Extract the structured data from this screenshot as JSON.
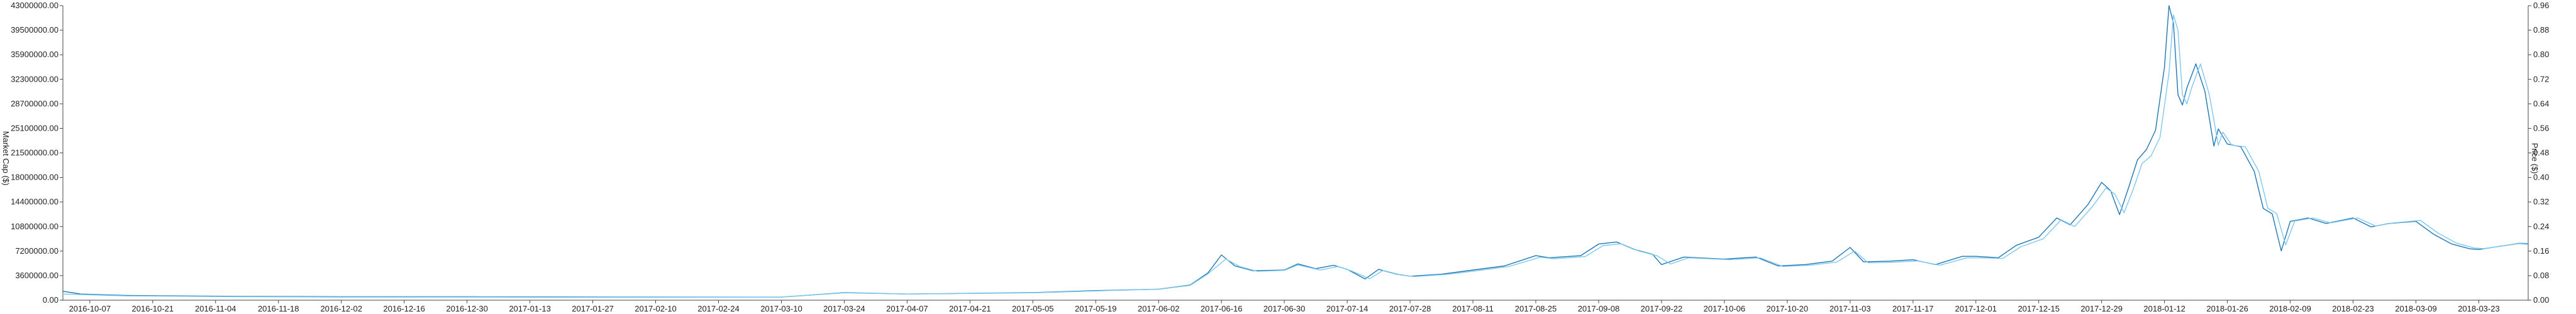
{
  "chart_data": {
    "type": "line",
    "grid": false,
    "legend": "none",
    "x_axis": {
      "type": "date",
      "range": [
        "2016-10-01",
        "2018-04-03"
      ],
      "tick_labels": [
        "2016-10-07",
        "2016-10-21",
        "2016-11-04",
        "2016-11-18",
        "2016-12-02",
        "2016-12-16",
        "2016-12-30",
        "2017-01-13",
        "2017-01-27",
        "2017-02-10",
        "2017-02-24",
        "2017-03-10",
        "2017-03-24",
        "2017-04-07",
        "2017-04-21",
        "2017-05-05",
        "2017-05-19",
        "2017-06-02",
        "2017-06-16",
        "2017-06-30",
        "2017-07-14",
        "2017-07-28",
        "2017-08-11",
        "2017-08-25",
        "2017-09-08",
        "2017-09-22",
        "2017-10-06",
        "2017-10-20",
        "2017-11-03",
        "2017-11-17",
        "2017-12-01",
        "2017-12-15",
        "2017-12-29",
        "2018-01-12",
        "2018-01-26",
        "2018-02-09",
        "2018-02-23",
        "2018-03-09",
        "2018-03-23"
      ]
    },
    "y_axis_left": {
      "label": "Market Cap ($)",
      "range": [
        0,
        43000000
      ],
      "tick_labels": [
        "0.00",
        "3600000.00",
        "7200000.00",
        "10800000.00",
        "14400000.00",
        "18000000.00",
        "21500000.00",
        "25100000.00",
        "28700000.00",
        "32300000.00",
        "35900000.00",
        "39500000.00",
        "43000000.00"
      ]
    },
    "y_axis_right": {
      "label": "Price ($)",
      "range": [
        0,
        0.96
      ],
      "tick_labels": [
        "0.00",
        "0.08",
        "0.16",
        "0.24",
        "0.32",
        "0.40",
        "0.48",
        "0.56",
        "0.64",
        "0.72",
        "0.80",
        "0.88",
        "0.96"
      ]
    },
    "series": [
      {
        "axis": "left",
        "color": "#1f77b4",
        "points": [
          [
            "2016-10-01",
            1300000
          ],
          [
            "2016-10-05",
            900000
          ],
          [
            "2016-10-15",
            700000
          ],
          [
            "2016-11-01",
            600000
          ],
          [
            "2016-12-01",
            500000
          ],
          [
            "2017-01-01",
            500000
          ],
          [
            "2017-02-01",
            450000
          ],
          [
            "2017-03-10",
            450000
          ],
          [
            "2017-03-24",
            1100000
          ],
          [
            "2017-04-07",
            900000
          ],
          [
            "2017-04-21",
            1000000
          ],
          [
            "2017-05-05",
            1100000
          ],
          [
            "2017-05-19",
            1400000
          ],
          [
            "2017-06-02",
            1600000
          ],
          [
            "2017-06-09",
            2200000
          ],
          [
            "2017-06-13",
            4000000
          ],
          [
            "2017-06-16",
            6600000
          ],
          [
            "2017-06-19",
            5000000
          ],
          [
            "2017-06-23",
            4300000
          ],
          [
            "2017-06-30",
            4400000
          ],
          [
            "2017-07-03",
            5300000
          ],
          [
            "2017-07-07",
            4600000
          ],
          [
            "2017-07-11",
            5100000
          ],
          [
            "2017-07-14",
            4500000
          ],
          [
            "2017-07-18",
            3100000
          ],
          [
            "2017-07-21",
            4500000
          ],
          [
            "2017-07-25",
            3800000
          ],
          [
            "2017-07-28",
            3500000
          ],
          [
            "2017-08-04",
            3800000
          ],
          [
            "2017-08-11",
            4400000
          ],
          [
            "2017-08-18",
            5000000
          ],
          [
            "2017-08-25",
            6500000
          ],
          [
            "2017-08-28",
            6200000
          ],
          [
            "2017-09-04",
            6500000
          ],
          [
            "2017-09-08",
            8200000
          ],
          [
            "2017-09-12",
            8500000
          ],
          [
            "2017-09-16",
            7400000
          ],
          [
            "2017-09-20",
            6700000
          ],
          [
            "2017-09-22",
            5200000
          ],
          [
            "2017-09-27",
            6300000
          ],
          [
            "2017-10-06",
            6000000
          ],
          [
            "2017-10-13",
            6300000
          ],
          [
            "2017-10-18",
            5000000
          ],
          [
            "2017-10-24",
            5200000
          ],
          [
            "2017-10-30",
            5700000
          ],
          [
            "2017-11-03",
            7700000
          ],
          [
            "2017-11-06",
            5600000
          ],
          [
            "2017-11-12",
            5700000
          ],
          [
            "2017-11-17",
            5900000
          ],
          [
            "2017-11-22",
            5200000
          ],
          [
            "2017-11-28",
            6400000
          ],
          [
            "2017-12-01",
            6400000
          ],
          [
            "2017-12-06",
            6200000
          ],
          [
            "2017-12-10",
            8000000
          ],
          [
            "2017-12-15",
            9200000
          ],
          [
            "2017-12-19",
            12000000
          ],
          [
            "2017-12-22",
            11000000
          ],
          [
            "2017-12-26",
            14000000
          ],
          [
            "2017-12-29",
            17200000
          ],
          [
            "2017-12-31",
            16000000
          ],
          [
            "2018-01-02",
            12500000
          ],
          [
            "2018-01-04",
            16400000
          ],
          [
            "2018-01-06",
            20500000
          ],
          [
            "2018-01-08",
            22000000
          ],
          [
            "2018-01-10",
            24800000
          ],
          [
            "2018-01-12",
            34000000
          ],
          [
            "2018-01-13",
            43000000
          ],
          [
            "2018-01-14",
            40500000
          ],
          [
            "2018-01-15",
            30000000
          ],
          [
            "2018-01-16",
            28500000
          ],
          [
            "2018-01-17",
            31000000
          ],
          [
            "2018-01-19",
            34500000
          ],
          [
            "2018-01-21",
            30500000
          ],
          [
            "2018-01-23",
            22500000
          ],
          [
            "2018-01-24",
            25000000
          ],
          [
            "2018-01-26",
            22800000
          ],
          [
            "2018-01-29",
            22400000
          ],
          [
            "2018-02-01",
            18800000
          ],
          [
            "2018-02-03",
            13400000
          ],
          [
            "2018-02-05",
            12600000
          ],
          [
            "2018-02-07",
            7200000
          ],
          [
            "2018-02-09",
            11500000
          ],
          [
            "2018-02-13",
            12000000
          ],
          [
            "2018-02-17",
            11200000
          ],
          [
            "2018-02-23",
            12000000
          ],
          [
            "2018-02-27",
            10700000
          ],
          [
            "2018-03-03",
            11200000
          ],
          [
            "2018-03-09",
            11500000
          ],
          [
            "2018-03-13",
            9600000
          ],
          [
            "2018-03-17",
            8200000
          ],
          [
            "2018-03-21",
            7500000
          ],
          [
            "2018-03-23",
            7400000
          ],
          [
            "2018-03-27",
            7800000
          ],
          [
            "2018-04-01",
            8300000
          ],
          [
            "2018-04-03",
            8200000
          ]
        ]
      },
      {
        "axis": "right",
        "color": "#7ec8f0",
        "points": [
          [
            "2016-10-01",
            0.02
          ],
          [
            "2016-10-15",
            0.014
          ],
          [
            "2016-11-01",
            0.012
          ],
          [
            "2016-12-01",
            0.01
          ],
          [
            "2017-01-01",
            0.01
          ],
          [
            "2017-02-01",
            0.009
          ],
          [
            "2017-03-10",
            0.01
          ],
          [
            "2017-03-24",
            0.024
          ],
          [
            "2017-04-07",
            0.02
          ],
          [
            "2017-04-21",
            0.022
          ],
          [
            "2017-05-05",
            0.024
          ],
          [
            "2017-05-19",
            0.03
          ],
          [
            "2017-06-02",
            0.036
          ],
          [
            "2017-06-09",
            0.048
          ],
          [
            "2017-06-13",
            0.086
          ],
          [
            "2017-06-17",
            0.134
          ],
          [
            "2017-06-20",
            0.11
          ],
          [
            "2017-06-24",
            0.094
          ],
          [
            "2017-06-30",
            0.097
          ],
          [
            "2017-07-03",
            0.115
          ],
          [
            "2017-07-08",
            0.098
          ],
          [
            "2017-07-12",
            0.11
          ],
          [
            "2017-07-15",
            0.095
          ],
          [
            "2017-07-19",
            0.07
          ],
          [
            "2017-07-22",
            0.097
          ],
          [
            "2017-07-26",
            0.082
          ],
          [
            "2017-07-29",
            0.077
          ],
          [
            "2017-08-05",
            0.084
          ],
          [
            "2017-08-12",
            0.096
          ],
          [
            "2017-08-19",
            0.11
          ],
          [
            "2017-08-26",
            0.14
          ],
          [
            "2017-08-29",
            0.135
          ],
          [
            "2017-09-05",
            0.142
          ],
          [
            "2017-09-09",
            0.178
          ],
          [
            "2017-09-13",
            0.184
          ],
          [
            "2017-09-17",
            0.16
          ],
          [
            "2017-09-21",
            0.145
          ],
          [
            "2017-09-24",
            0.118
          ],
          [
            "2017-09-28",
            0.138
          ],
          [
            "2017-10-07",
            0.132
          ],
          [
            "2017-10-14",
            0.138
          ],
          [
            "2017-10-19",
            0.11
          ],
          [
            "2017-10-25",
            0.114
          ],
          [
            "2017-10-31",
            0.124
          ],
          [
            "2017-11-04",
            0.16
          ],
          [
            "2017-11-07",
            0.122
          ],
          [
            "2017-11-13",
            0.124
          ],
          [
            "2017-11-18",
            0.128
          ],
          [
            "2017-11-23",
            0.114
          ],
          [
            "2017-11-29",
            0.138
          ],
          [
            "2017-12-02",
            0.138
          ],
          [
            "2017-12-07",
            0.136
          ],
          [
            "2017-12-11",
            0.174
          ],
          [
            "2017-12-16",
            0.2
          ],
          [
            "2017-12-20",
            0.262
          ],
          [
            "2017-12-23",
            0.24
          ],
          [
            "2017-12-27",
            0.306
          ],
          [
            "2017-12-30",
            0.366
          ],
          [
            "2018-01-01",
            0.345
          ],
          [
            "2018-01-03",
            0.285
          ],
          [
            "2018-01-05",
            0.36
          ],
          [
            "2018-01-07",
            0.445
          ],
          [
            "2018-01-09",
            0.47
          ],
          [
            "2018-01-11",
            0.53
          ],
          [
            "2018-01-13",
            0.74
          ],
          [
            "2018-01-14",
            0.93
          ],
          [
            "2018-01-15",
            0.88
          ],
          [
            "2018-01-16",
            0.67
          ],
          [
            "2018-01-17",
            0.64
          ],
          [
            "2018-01-18",
            0.69
          ],
          [
            "2018-01-20",
            0.77
          ],
          [
            "2018-01-22",
            0.67
          ],
          [
            "2018-01-24",
            0.505
          ],
          [
            "2018-01-25",
            0.548
          ],
          [
            "2018-01-27",
            0.505
          ],
          [
            "2018-01-30",
            0.5
          ],
          [
            "2018-02-02",
            0.42
          ],
          [
            "2018-02-04",
            0.3
          ],
          [
            "2018-02-06",
            0.282
          ],
          [
            "2018-02-08",
            0.18
          ],
          [
            "2018-02-10",
            0.258
          ],
          [
            "2018-02-14",
            0.268
          ],
          [
            "2018-02-18",
            0.252
          ],
          [
            "2018-02-24",
            0.268
          ],
          [
            "2018-02-28",
            0.242
          ],
          [
            "2018-03-04",
            0.252
          ],
          [
            "2018-03-10",
            0.26
          ],
          [
            "2018-03-14",
            0.218
          ],
          [
            "2018-03-18",
            0.186
          ],
          [
            "2018-03-22",
            0.17
          ],
          [
            "2018-03-24",
            0.168
          ],
          [
            "2018-03-28",
            0.176
          ],
          [
            "2018-04-01",
            0.186
          ],
          [
            "2018-04-03",
            0.185
          ]
        ]
      }
    ]
  }
}
